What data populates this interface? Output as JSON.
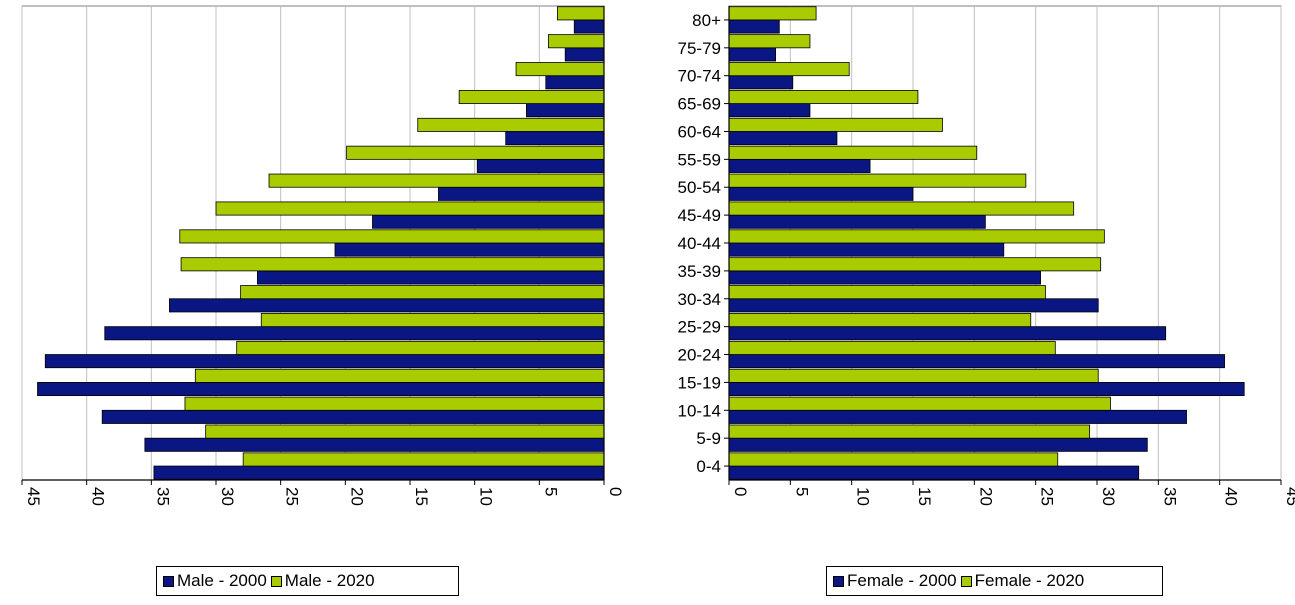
{
  "chart_data": [
    {
      "panel": "male",
      "type": "bar",
      "orientation": "horizontal",
      "x_direction": "reversed",
      "categories": [
        "0-4",
        "5-9",
        "10-14",
        "15-19",
        "20-24",
        "25-29",
        "30-34",
        "35-39",
        "40-44",
        "45-49",
        "50-54",
        "55-59",
        "60-64",
        "65-69",
        "70-74",
        "75-79",
        "80+"
      ],
      "series": [
        {
          "name": "Male - 2000",
          "color": "#0a1682",
          "values": [
            34.8,
            35.5,
            38.8,
            43.8,
            43.2,
            38.6,
            33.6,
            26.8,
            20.8,
            17.9,
            12.8,
            9.8,
            7.6,
            6.0,
            4.5,
            3.0,
            2.3
          ]
        },
        {
          "name": "Male - 2020",
          "color": "#a8cc00",
          "values": [
            27.9,
            30.8,
            32.4,
            31.6,
            28.4,
            26.5,
            28.1,
            32.7,
            32.8,
            30.0,
            25.9,
            19.9,
            14.4,
            11.2,
            6.8,
            4.3,
            3.6
          ]
        }
      ],
      "xlim": [
        0,
        45
      ],
      "xticks": [
        "0",
        "5",
        "10",
        "15",
        "20",
        "25",
        "30",
        "35",
        "40",
        "45"
      ],
      "grid": true,
      "legend": "bottom"
    },
    {
      "panel": "female",
      "type": "bar",
      "orientation": "horizontal",
      "categories": [
        "0-4",
        "5-9",
        "10-14",
        "15-19",
        "20-24",
        "25-29",
        "30-34",
        "35-39",
        "40-44",
        "45-49",
        "50-54",
        "55-59",
        "60-64",
        "65-69",
        "70-74",
        "75-79",
        "80+"
      ],
      "series": [
        {
          "name": "Female - 2000",
          "color": "#0a1682",
          "values": [
            33.4,
            34.1,
            37.3,
            42.0,
            40.4,
            35.6,
            30.1,
            25.4,
            22.4,
            20.9,
            15.0,
            11.5,
            8.8,
            6.6,
            5.2,
            3.8,
            4.1
          ]
        },
        {
          "name": "Female - 2020",
          "color": "#a8cc00",
          "values": [
            26.8,
            29.4,
            31.1,
            30.1,
            26.6,
            24.6,
            25.8,
            30.3,
            30.6,
            28.1,
            24.2,
            20.2,
            17.4,
            15.4,
            9.8,
            6.6,
            7.1
          ]
        }
      ],
      "xlim": [
        0,
        45
      ],
      "xticks": [
        "0",
        "5",
        "10",
        "15",
        "20",
        "25",
        "30",
        "35",
        "40",
        "45"
      ],
      "grid": true,
      "legend": "bottom"
    }
  ]
}
